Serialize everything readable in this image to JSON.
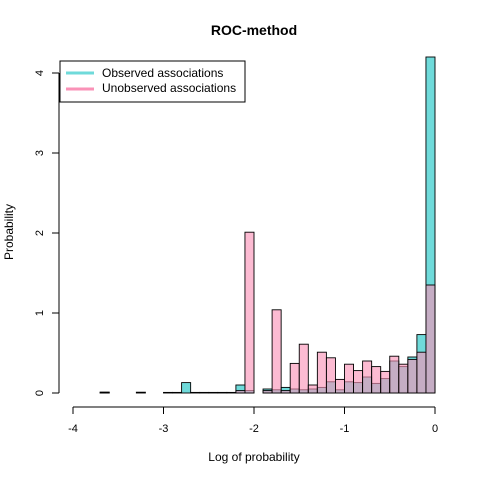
{
  "chart_data": {
    "type": "bar",
    "title": "ROC-method",
    "xlabel": "Log of probability",
    "ylabel": "Probability",
    "xlim": [
      -4,
      0
    ],
    "ylim": [
      0,
      4.2
    ],
    "bin_width": 0.1,
    "x_ticks": [
      "-4",
      "-3",
      "-2",
      "-1",
      "0"
    ],
    "y_ticks": [
      "0",
      "1",
      "2",
      "3",
      "4"
    ],
    "legend_position": "top-left",
    "overlap_color": "#9b5b98",
    "series": [
      {
        "name": "Observed associations",
        "color": "#6fdada",
        "bins": [
          {
            "x0": -3.7,
            "x1": -3.6,
            "value": 0.01
          },
          {
            "x0": -2.8,
            "x1": -2.7,
            "value": 0.13
          },
          {
            "x0": -2.2,
            "x1": -2.1,
            "value": 0.1
          },
          {
            "x0": -2.1,
            "x1": -2.0,
            "value": 0.03
          },
          {
            "x0": -1.9,
            "x1": -1.8,
            "value": 0.05
          },
          {
            "x0": -1.8,
            "x1": -1.7,
            "value": 0.04
          },
          {
            "x0": -1.7,
            "x1": -1.6,
            "value": 0.07
          },
          {
            "x0": -1.6,
            "x1": -1.5,
            "value": 0.05
          },
          {
            "x0": -1.5,
            "x1": -1.4,
            "value": 0.04
          },
          {
            "x0": -1.4,
            "x1": -1.3,
            "value": 0.05
          },
          {
            "x0": -1.3,
            "x1": -1.2,
            "value": 0.07
          },
          {
            "x0": -1.2,
            "x1": -1.1,
            "value": 0.14
          },
          {
            "x0": -1.1,
            "x1": -1.0,
            "value": 0.04
          },
          {
            "x0": -1.0,
            "x1": -0.9,
            "value": 0.14
          },
          {
            "x0": -0.9,
            "x1": -0.8,
            "value": 0.13
          },
          {
            "x0": -0.8,
            "x1": -0.7,
            "value": 0.2
          },
          {
            "x0": -0.7,
            "x1": -0.6,
            "value": 0.12
          },
          {
            "x0": -0.6,
            "x1": -0.5,
            "value": 0.18
          },
          {
            "x0": -0.5,
            "x1": -0.4,
            "value": 0.4
          },
          {
            "x0": -0.4,
            "x1": -0.3,
            "value": 0.33
          },
          {
            "x0": -0.3,
            "x1": -0.2,
            "value": 0.45
          },
          {
            "x0": -0.2,
            "x1": -0.1,
            "value": 0.73
          },
          {
            "x0": -0.1,
            "x1": 0.0,
            "value": 4.2
          }
        ]
      },
      {
        "name": "Unobserved associations",
        "color": "#fa92b7",
        "bins": [
          {
            "x0": -3.7,
            "x1": -3.6,
            "value": 0.01
          },
          {
            "x0": -3.3,
            "x1": -3.2,
            "value": 0.01
          },
          {
            "x0": -3.0,
            "x1": -2.9,
            "value": 0.005
          },
          {
            "x0": -2.9,
            "x1": -2.8,
            "value": 0.005
          },
          {
            "x0": -2.7,
            "x1": -2.6,
            "value": 0.005
          },
          {
            "x0": -2.6,
            "x1": -2.5,
            "value": 0.005
          },
          {
            "x0": -2.5,
            "x1": -2.4,
            "value": 0.005
          },
          {
            "x0": -2.4,
            "x1": -2.3,
            "value": 0.005
          },
          {
            "x0": -2.3,
            "x1": -2.2,
            "value": 0.005
          },
          {
            "x0": -2.2,
            "x1": -2.1,
            "value": 0.03
          },
          {
            "x0": -2.1,
            "x1": -2.0,
            "value": 2.01
          },
          {
            "x0": -1.9,
            "x1": -1.8,
            "value": 0.03
          },
          {
            "x0": -1.8,
            "x1": -1.7,
            "value": 1.04
          },
          {
            "x0": -1.7,
            "x1": -1.6,
            "value": 0.03
          },
          {
            "x0": -1.6,
            "x1": -1.5,
            "value": 0.37
          },
          {
            "x0": -1.5,
            "x1": -1.4,
            "value": 0.61
          },
          {
            "x0": -1.4,
            "x1": -1.3,
            "value": 0.1
          },
          {
            "x0": -1.3,
            "x1": -1.2,
            "value": 0.51
          },
          {
            "x0": -1.2,
            "x1": -1.1,
            "value": 0.44
          },
          {
            "x0": -1.1,
            "x1": -1.0,
            "value": 0.17
          },
          {
            "x0": -1.0,
            "x1": -0.9,
            "value": 0.36
          },
          {
            "x0": -0.9,
            "x1": -0.8,
            "value": 0.28
          },
          {
            "x0": -0.8,
            "x1": -0.7,
            "value": 0.4
          },
          {
            "x0": -0.7,
            "x1": -0.6,
            "value": 0.33
          },
          {
            "x0": -0.6,
            "x1": -0.5,
            "value": 0.27
          },
          {
            "x0": -0.5,
            "x1": -0.4,
            "value": 0.46
          },
          {
            "x0": -0.4,
            "x1": -0.3,
            "value": 0.36
          },
          {
            "x0": -0.3,
            "x1": -0.2,
            "value": 0.42
          },
          {
            "x0": -0.2,
            "x1": -0.1,
            "value": 0.51
          },
          {
            "x0": -0.1,
            "x1": 0.0,
            "value": 1.35
          }
        ]
      }
    ]
  }
}
